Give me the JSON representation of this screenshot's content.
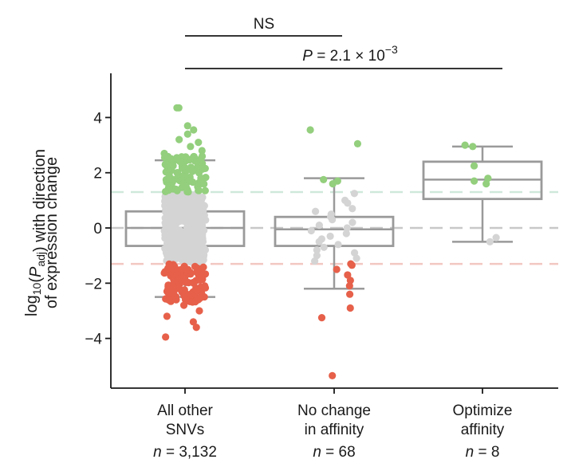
{
  "chart_data": {
    "type": "box",
    "ylabel_line1": "log10(Padj) with direction",
    "ylabel_line2": "of expression change",
    "ylim": [
      -5.8,
      5.6
    ],
    "yticks": [
      {
        "value": 4,
        "label": "4"
      },
      {
        "value": 2,
        "label": "2"
      },
      {
        "value": 0,
        "label": "0"
      },
      {
        "value": -2,
        "label": "−2"
      },
      {
        "value": -4,
        "label": "−4"
      }
    ],
    "thresholds": [
      {
        "value": 1.3,
        "color": "#cfe8db"
      },
      {
        "value": 0,
        "color": "#c8c8c8"
      },
      {
        "value": -1.3,
        "color": "#f2c7c2"
      }
    ],
    "colors": {
      "up": "#93cf7d",
      "ns": "#d4d4d4",
      "down": "#e6604a",
      "box": "#9a9a9a",
      "axis": "#1a1a1a"
    },
    "groups": [
      {
        "label_lines": [
          "All other",
          "SNVs"
        ],
        "n_text": "= 3,132",
        "box": {
          "whisker_low": -2.5,
          "q1": -0.65,
          "median": 0.0,
          "q3": 0.6,
          "whisker_high": 2.45
        },
        "points": [
          4.35,
          4.35,
          3.7,
          3.55,
          3.4,
          3.2,
          3.1,
          2.95,
          2.8,
          2.7,
          2.6,
          2.5,
          2.4,
          2.3,
          2.2,
          2.1,
          2.0,
          1.9,
          1.8,
          1.7,
          1.6,
          1.5,
          1.4,
          1.35,
          -1.4,
          -1.5,
          -1.6,
          -1.7,
          -1.8,
          -1.9,
          -2.0,
          -2.1,
          -2.2,
          -2.3,
          -2.4,
          -2.6,
          -2.8,
          -3.0,
          -3.2,
          -3.4,
          -3.6,
          -3.95
        ]
      },
      {
        "label_lines": [
          "No change",
          "in affinity"
        ],
        "n_text": "= 68",
        "box": {
          "whisker_low": -2.2,
          "q1": -0.65,
          "median": -0.05,
          "q3": 0.4,
          "whisker_high": 1.8
        },
        "points": [
          3.55,
          3.05,
          1.75,
          1.7,
          1.6,
          1.25,
          1.0,
          0.9,
          0.7,
          0.6,
          0.5,
          0.4,
          0.3,
          0.2,
          0.1,
          0.0,
          -0.1,
          -0.2,
          -0.3,
          -0.4,
          -0.5,
          -0.6,
          -0.7,
          -0.8,
          -0.9,
          -1.0,
          -1.1,
          -1.2,
          -1.3,
          -1.35,
          -1.5,
          -1.7,
          -1.9,
          -2.1,
          -2.4,
          -2.9,
          -3.25,
          -5.35
        ]
      },
      {
        "label_lines": [
          "Optimize",
          "affinity"
        ],
        "n_text": "= 8",
        "box": {
          "whisker_low": -0.5,
          "q1": 1.05,
          "median": 1.75,
          "q3": 2.4,
          "whisker_high": 2.95
        },
        "points": [
          3.0,
          2.95,
          2.25,
          1.8,
          1.7,
          1.6,
          -0.35,
          -0.5
        ]
      }
    ],
    "annotations": [
      {
        "label": "NS",
        "from_group": 0,
        "to_group": 1
      },
      {
        "label_italic": "P",
        "label_value": " = 2.1 × 10",
        "label_sup": "−3",
        "from_group": 0,
        "to_group": 2
      }
    ]
  }
}
